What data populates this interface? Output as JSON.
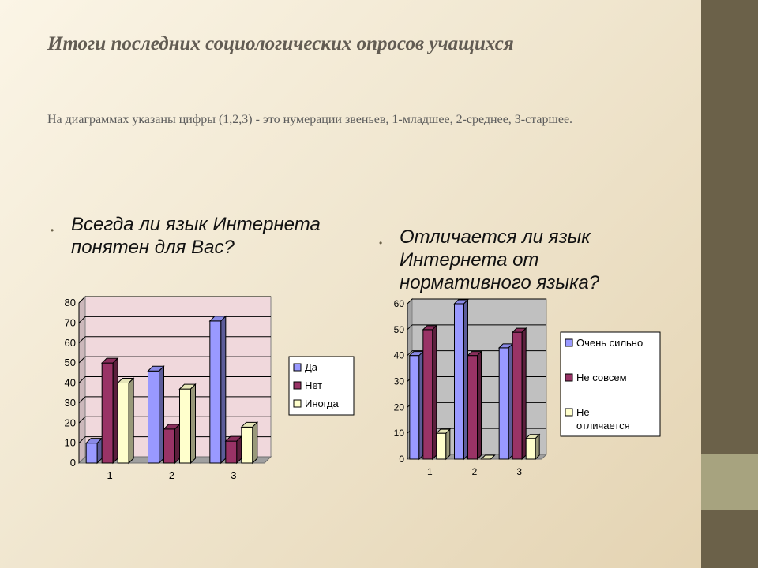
{
  "title": "Итоги последних  социологических опросов учащихся",
  "subtitle": "На диаграммах указаны цифры (1,2,3) - это нумерации звеньев, 1-младшее, 2-среднее, 3-старшее.",
  "questions": [
    "Всегда ли язык Интернета понятен для Вас?",
    "Отличается ли язык Интернета от нормативного языка?"
  ],
  "chart_data": [
    {
      "type": "bar",
      "categories": [
        "1",
        "2",
        "3"
      ],
      "series": [
        {
          "name": "Да",
          "values": [
            10,
            46,
            71
          ],
          "color": "#9999ff"
        },
        {
          "name": "Нет",
          "values": [
            50,
            17,
            11
          ],
          "color": "#993366"
        },
        {
          "name": "Иногда",
          "values": [
            40,
            37,
            18
          ],
          "color": "#ffffcc"
        }
      ],
      "ylim": [
        0,
        80
      ],
      "yticks": [
        0,
        10,
        20,
        30,
        40,
        50,
        60,
        70,
        80
      ],
      "grid": true,
      "plot_background": "#f0d8dc",
      "legend_position": "right"
    },
    {
      "type": "bar",
      "categories": [
        "1",
        "2",
        "3"
      ],
      "series": [
        {
          "name": "Очень сильно",
          "values": [
            40,
            60,
            43
          ],
          "color": "#9999ff"
        },
        {
          "name": "Не совсем",
          "values": [
            50,
            40,
            49
          ],
          "color": "#993366"
        },
        {
          "name": "Не отличается",
          "values": [
            10,
            0,
            8
          ],
          "color": "#ffffcc"
        }
      ],
      "ylim": [
        0,
        60
      ],
      "yticks": [
        0,
        10,
        20,
        30,
        40,
        50,
        60
      ],
      "grid": true,
      "plot_background": "#c0c0c0",
      "legend_position": "right"
    }
  ]
}
